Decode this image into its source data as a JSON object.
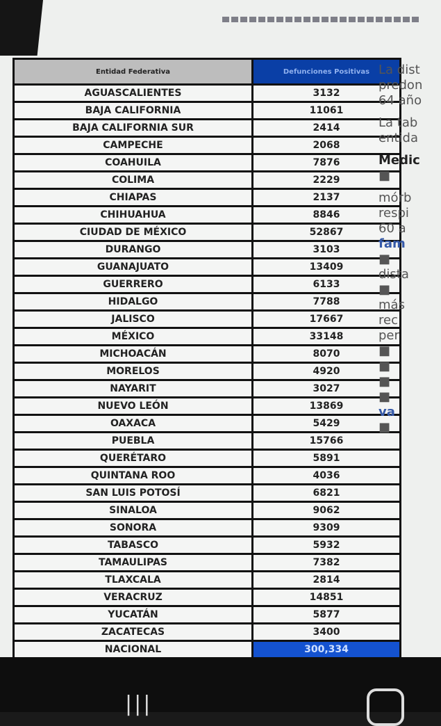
{
  "table": {
    "headers": [
      "Entidad Federativa",
      "Defunciones Positivas"
    ],
    "rows": [
      [
        "AGUASCALIENTES",
        "3132"
      ],
      [
        "BAJA CALIFORNIA",
        "11061"
      ],
      [
        "BAJA CALIFORNIA SUR",
        "2414"
      ],
      [
        "CAMPECHE",
        "2068"
      ],
      [
        "COAHUILA",
        "7876"
      ],
      [
        "COLIMA",
        "2229"
      ],
      [
        "CHIAPAS",
        "2137"
      ],
      [
        "CHIHUAHUA",
        "8846"
      ],
      [
        "CIUDAD DE MÉXICO",
        "52867"
      ],
      [
        "DURANGO",
        "3103"
      ],
      [
        "GUANAJUATO",
        "13409"
      ],
      [
        "GUERRERO",
        "6133"
      ],
      [
        "HIDALGO",
        "7788"
      ],
      [
        "JALISCO",
        "17667"
      ],
      [
        "MÉXICO",
        "33148"
      ],
      [
        "MICHOACÁN",
        "8070"
      ],
      [
        "MORELOS",
        "4920"
      ],
      [
        "NAYARIT",
        "3027"
      ],
      [
        "NUEVO LEÓN",
        "13869"
      ],
      [
        "OAXACA",
        "5429"
      ],
      [
        "PUEBLA",
        "15766"
      ],
      [
        "QUERÉTARO",
        "5891"
      ],
      [
        "QUINTANA ROO",
        "4036"
      ],
      [
        "SAN LUIS POTOSÍ",
        "6821"
      ],
      [
        "SINALOA",
        "9062"
      ],
      [
        "SONORA",
        "9309"
      ],
      [
        "TABASCO",
        "5932"
      ],
      [
        "TAMAULIPAS",
        "7382"
      ],
      [
        "TLAXCALA",
        "2814"
      ],
      [
        "VERACRUZ",
        "14851"
      ],
      [
        "YUCATÁN",
        "5877"
      ],
      [
        "ZACATECAS",
        "3400"
      ]
    ],
    "total": [
      "NACIONAL",
      "300,334"
    ]
  },
  "side_text": [
    "La dist",
    "predon",
    "64 año",
    "La tab",
    "entida",
    "Medic",
    "■",
    "mórb",
    "respi",
    "60 a",
    "fam",
    "■",
    "dista",
    "■",
    "más",
    "rec",
    "per",
    "■",
    "■",
    "■",
    "■",
    "va",
    "■"
  ],
  "colors": {
    "header_blue": "#0a3fa6",
    "link": "#3559a8"
  }
}
